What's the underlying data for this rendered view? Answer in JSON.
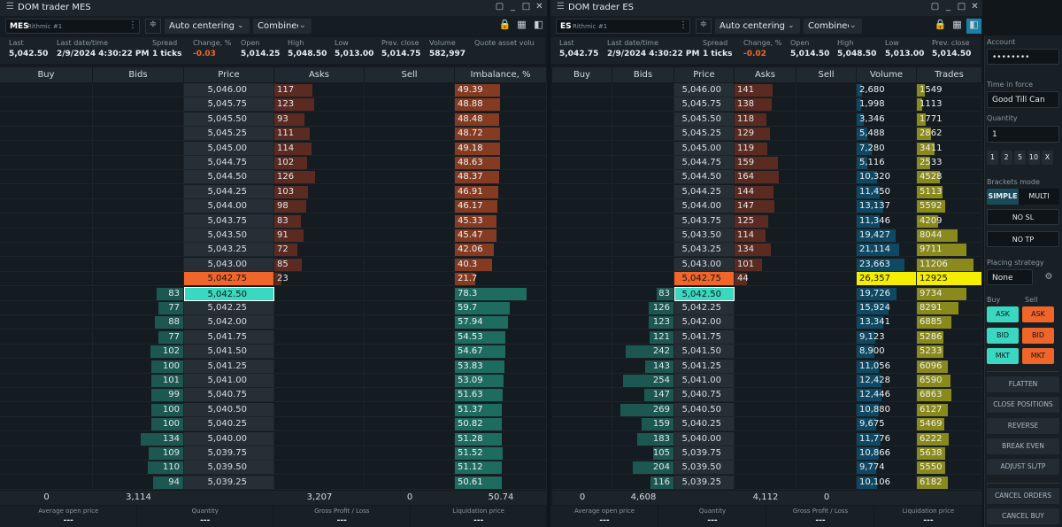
{
  "panels": [
    {
      "title": "DOM trader MES",
      "symbol": "MES",
      "connection": "Rithmic #1",
      "centering": "Auto centering",
      "view": "Combined",
      "stats": [
        {
          "label": "Last",
          "value": "5,042.50"
        },
        {
          "label": "Last date/time",
          "value": "2/9/2024 4:30:22 PM"
        },
        {
          "label": "Spread",
          "value": "1 ticks"
        },
        {
          "label": "Change, %",
          "value": "-0.03"
        },
        {
          "label": "Open",
          "value": "5,014.25"
        },
        {
          "label": "High",
          "value": "5,048.50"
        },
        {
          "label": "Low",
          "value": "5,013.00"
        },
        {
          "label": "Prev. close",
          "value": "5,014.75"
        },
        {
          "label": "Volume",
          "value": "582,997"
        },
        {
          "label": "Quote asset volu"
        }
      ],
      "columns": [
        "Buy",
        "Bids",
        "Price",
        "Asks",
        "Sell",
        "Imbalance, %"
      ],
      "rows": [
        {
          "price": "5,046.00",
          "asks": 117,
          "imbalance": 49.39
        },
        {
          "price": "5,045.75",
          "asks": 123,
          "imbalance": 48.88
        },
        {
          "price": "5,045.50",
          "asks": 93,
          "imbalance": 48.48
        },
        {
          "price": "5,045.25",
          "asks": 111,
          "imbalance": 48.72
        },
        {
          "price": "5,045.00",
          "asks": 114,
          "imbalance": 49.18
        },
        {
          "price": "5,044.75",
          "asks": 102,
          "imbalance": 48.63
        },
        {
          "price": "5,044.50",
          "asks": 126,
          "imbalance": 48.37
        },
        {
          "price": "5,044.25",
          "asks": 103,
          "imbalance": 46.91
        },
        {
          "price": "5,044.00",
          "asks": 98,
          "imbalance": 46.17
        },
        {
          "price": "5,043.75",
          "asks": 83,
          "imbalance": 45.33
        },
        {
          "price": "5,043.50",
          "asks": 91,
          "imbalance": 45.47
        },
        {
          "price": "5,043.25",
          "asks": 72,
          "imbalance": 42.06
        },
        {
          "price": "5,043.00",
          "asks": 85,
          "imbalance": 40.3
        },
        {
          "price": "5,042.75",
          "asks": 23,
          "imbalance": 21.7
        },
        {
          "price": "5,042.50",
          "bids": 83,
          "imbalance": 78.3
        },
        {
          "price": "5,042.25",
          "bids": 77,
          "imbalance": 59.7
        },
        {
          "price": "5,042.00",
          "bids": 88,
          "imbalance": 57.94
        },
        {
          "price": "5,041.75",
          "bids": 77,
          "imbalance": 54.53
        },
        {
          "price": "5,041.50",
          "bids": 102,
          "imbalance": 54.67
        },
        {
          "price": "5,041.25",
          "bids": 100,
          "imbalance": 53.83
        },
        {
          "price": "5,041.00",
          "bids": 101,
          "imbalance": 53.09
        },
        {
          "price": "5,040.75",
          "bids": 99,
          "imbalance": 51.63
        },
        {
          "price": "5,040.50",
          "bids": 100,
          "imbalance": 51.37
        },
        {
          "price": "5,040.25",
          "bids": 100,
          "imbalance": 50.82
        },
        {
          "price": "5,040.00",
          "bids": 134,
          "imbalance": 51.28
        },
        {
          "price": "5,039.75",
          "bids": 109,
          "imbalance": 51.52
        },
        {
          "price": "5,039.50",
          "bids": 110,
          "imbalance": 51.12
        },
        {
          "price": "5,039.25",
          "bids": 94,
          "imbalance": 50.61
        }
      ],
      "totals": {
        "buy": "0",
        "bids": "3,114",
        "asks": "3,207",
        "sell": "0",
        "imbalance": "50.74"
      },
      "footer": [
        {
          "label": "Average open price",
          "value": "---"
        },
        {
          "label": "Quantity",
          "value": "---"
        },
        {
          "label": "Gross Profit / Loss",
          "value": "---"
        },
        {
          "label": "Liquidation price",
          "value": "---"
        }
      ]
    },
    {
      "title": "DOM trader ES",
      "symbol": "ES",
      "connection": "Rithmic #1",
      "centering": "Auto centering",
      "view": "Combined",
      "stats": [
        {
          "label": "Last",
          "value": "5,042.75"
        },
        {
          "label": "Last date/time",
          "value": "2/9/2024 4:30:22 PM"
        },
        {
          "label": "Spread",
          "value": "1 ticks"
        },
        {
          "label": "Change, %",
          "value": "-0.02"
        },
        {
          "label": "Open",
          "value": "5,014.50"
        },
        {
          "label": "High",
          "value": "5,048.50"
        },
        {
          "label": "Low",
          "value": "5,013.00"
        },
        {
          "label": "Prev. close",
          "value": "5,014.50"
        }
      ],
      "columns": [
        "Buy",
        "Bids",
        "Price",
        "Asks",
        "Sell",
        "Volume",
        "Trades"
      ],
      "rows": [
        {
          "price": "5,046.00",
          "asks": 141,
          "volume": 2680,
          "volume_label": "2,680",
          "trades": 1549
        },
        {
          "price": "5,045.75",
          "asks": 138,
          "volume": 1998,
          "volume_label": "1,998",
          "trades": 1113
        },
        {
          "price": "5,045.50",
          "asks": 118,
          "volume": 3346,
          "volume_label": "3,346",
          "trades": 1771
        },
        {
          "price": "5,045.25",
          "asks": 129,
          "volume": 5488,
          "volume_label": "5,488",
          "trades": 2862
        },
        {
          "price": "5,045.00",
          "asks": 119,
          "volume": 7280,
          "volume_label": "7,280",
          "trades": 3411
        },
        {
          "price": "5,044.75",
          "asks": 159,
          "volume": 5116,
          "volume_label": "5,116",
          "trades": 2533
        },
        {
          "price": "5,044.50",
          "asks": 164,
          "volume": 10320,
          "volume_label": "10,320",
          "trades": 4528
        },
        {
          "price": "5,044.25",
          "asks": 144,
          "volume": 11450,
          "volume_label": "11,450",
          "trades": 5113
        },
        {
          "price": "5,044.00",
          "asks": 147,
          "volume": 13137,
          "volume_label": "13,137",
          "trades": 5592
        },
        {
          "price": "5,043.75",
          "asks": 125,
          "volume": 11346,
          "volume_label": "11,346",
          "trades": 4209
        },
        {
          "price": "5,043.50",
          "asks": 114,
          "volume": 19427,
          "volume_label": "19,427",
          "trades": 8044
        },
        {
          "price": "5,043.25",
          "asks": 134,
          "volume": 21114,
          "volume_label": "21,114",
          "trades": 9711
        },
        {
          "price": "5,043.00",
          "asks": 101,
          "volume": 23663,
          "volume_label": "23,663",
          "trades": 11206
        },
        {
          "price": "5,042.75",
          "asks": 44,
          "volume": 26357,
          "volume_label": "26,357",
          "trades": 12925
        },
        {
          "price": "5,042.50",
          "bids": 83,
          "volume": 19726,
          "volume_label": "19,726",
          "trades": 9734
        },
        {
          "price": "5,042.25",
          "bids": 126,
          "volume": 15924,
          "volume_label": "15,924",
          "trades": 8291
        },
        {
          "price": "5,042.00",
          "bids": 123,
          "volume": 13341,
          "volume_label": "13,341",
          "trades": 6885
        },
        {
          "price": "5,041.75",
          "bids": 121,
          "volume": 9123,
          "volume_label": "9,123",
          "trades": 5286
        },
        {
          "price": "5,041.50",
          "bids": 242,
          "volume": 8900,
          "volume_label": "8,900",
          "trades": 5233
        },
        {
          "price": "5,041.25",
          "bids": 143,
          "volume": 11056,
          "volume_label": "11,056",
          "trades": 6096
        },
        {
          "price": "5,041.00",
          "bids": 254,
          "volume": 12428,
          "volume_label": "12,428",
          "trades": 6590
        },
        {
          "price": "5,040.75",
          "bids": 147,
          "volume": 12446,
          "volume_label": "12,446",
          "trades": 6863
        },
        {
          "price": "5,040.50",
          "bids": 269,
          "volume": 10880,
          "volume_label": "10,880",
          "trades": 6127
        },
        {
          "price": "5,040.25",
          "bids": 159,
          "volume": 9675,
          "volume_label": "9,675",
          "trades": 5469
        },
        {
          "price": "5,040.00",
          "bids": 183,
          "volume": 11776,
          "volume_label": "11,776",
          "trades": 6222
        },
        {
          "price": "5,039.75",
          "bids": 105,
          "volume": 10866,
          "volume_label": "10,866",
          "trades": 5638
        },
        {
          "price": "5,039.50",
          "bids": 204,
          "volume": 9774,
          "volume_label": "9,774",
          "trades": 5550
        },
        {
          "price": "5,039.25",
          "bids": 116,
          "volume": 10106,
          "volume_label": "10,106",
          "trades": 6182
        }
      ],
      "totals": {
        "buy": "0",
        "bids": "4,608",
        "asks": "4,112",
        "sell": "0"
      },
      "footer": [
        {
          "label": "Average open price",
          "value": "---"
        },
        {
          "label": "Quantity",
          "value": "---"
        },
        {
          "label": "Gross Profit / Loss",
          "value": "---"
        },
        {
          "label": "Liquidation price",
          "value": "---"
        }
      ]
    }
  ],
  "sidebar": {
    "account_label": "Account",
    "account": "••••••••",
    "tif_label": "Time in force",
    "tif": "Good Till Can",
    "quantity_label": "Quantity",
    "quantity": "1",
    "quick_quantities": [
      "1",
      "2",
      "5",
      "10",
      "X"
    ],
    "brackets_label": "Brackets mode",
    "brackets_modes": [
      "SIMPLE",
      "MULTI"
    ],
    "no_sl": "NO SL",
    "no_tp": "NO TP",
    "strategy_label": "Placing strategy",
    "strategy": "None",
    "buy_label": "Buy",
    "sell_label": "Sell",
    "buy_buttons": [
      "ASK",
      "BID",
      "MKT"
    ],
    "sell_buttons": [
      "ASK",
      "BID",
      "MKT"
    ],
    "actions": [
      "FLATTEN",
      "CLOSE POSITIONS",
      "REVERSE",
      "BREAK EVEN",
      "ADJUST SL/TP"
    ],
    "cancel_actions": [
      "CANCEL ORDERS",
      "CANCEL BUY"
    ]
  }
}
